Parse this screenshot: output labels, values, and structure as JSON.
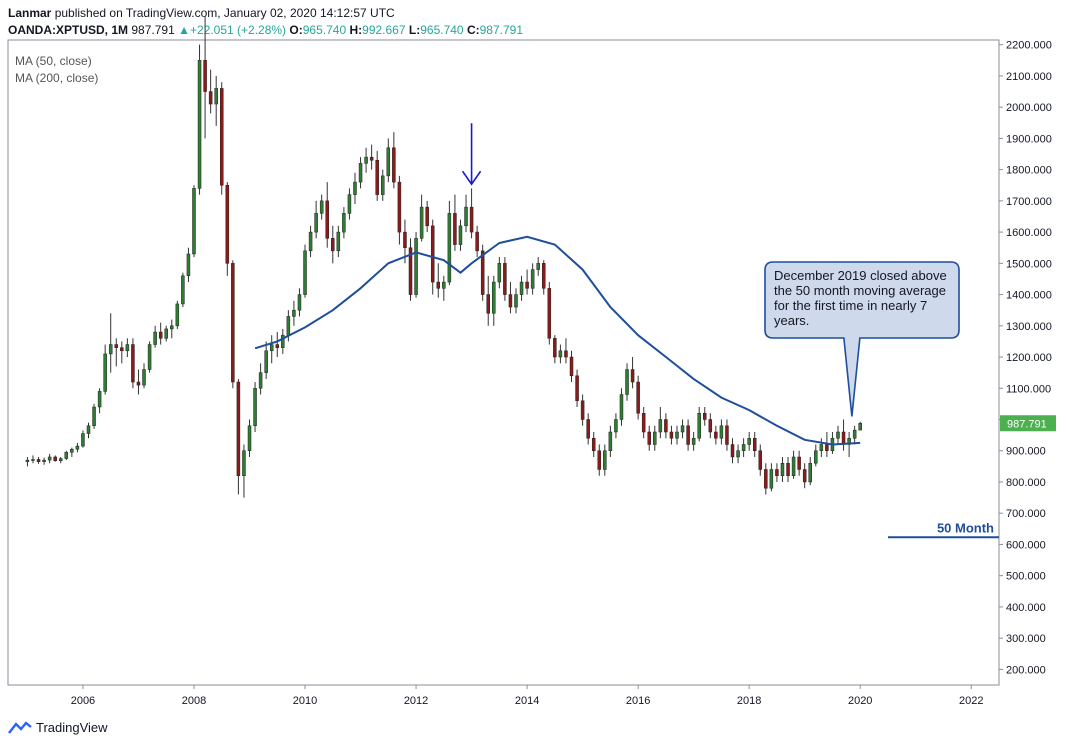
{
  "header": {
    "publisher": "Lanmar",
    "published_text": "published on TradingView.com, January 02, 2020 14:12:57 UTC",
    "symbol": "OANDA:XPTUSD, 1M",
    "last": "987.791",
    "change": "+22.051 (+2.28%)",
    "o_label": "O:",
    "o": "965.740",
    "h_label": "H:",
    "h": "992.667",
    "l_label": "L:",
    "l": "965.740",
    "c_label": "C:",
    "c": "987.791"
  },
  "indicators": [
    "MA (50, close)",
    "MA (200, close)"
  ],
  "footer": {
    "brand": "TradingView"
  },
  "annotations": {
    "callout": "December 2019 closed above the 50 month moving average for the first time in nearly 7 years.",
    "hline_label": "50 Month",
    "price_label": "987.791"
  },
  "colors": {
    "up": "#26a69a",
    "up_body": "#2e7d32",
    "down_body": "#8b1a1a",
    "ma": "#1f4e9c",
    "price_tag": "#4caf50",
    "arrow": "#1a1acc"
  },
  "chart_data": {
    "type": "candlestick",
    "x_ticks": [
      "2006",
      "2008",
      "2010",
      "2012",
      "2014",
      "2016",
      "2018",
      "2020",
      "2022"
    ],
    "y_ticks": [
      "200.000",
      "300.000",
      "400.000",
      "500.000",
      "600.000",
      "700.000",
      "800.000",
      "900.000",
      "1000.000",
      "1100.000",
      "1200.000",
      "1300.000",
      "1400.000",
      "1500.000",
      "1600.000",
      "1700.000",
      "1800.000",
      "1900.000",
      "2000.000",
      "2100.000",
      "2200.000"
    ],
    "ylim": [
      150,
      2215
    ],
    "xlim": [
      2004.65,
      2022.5
    ],
    "hline": {
      "value": 623,
      "x_start": 2020.5
    },
    "arrow_at": {
      "x": 2013.0,
      "y": 1750
    },
    "candles": [
      [
        2005.0,
        865,
        880,
        850,
        870
      ],
      [
        2005.1,
        870,
        885,
        860,
        872
      ],
      [
        2005.2,
        872,
        880,
        858,
        865
      ],
      [
        2005.3,
        865,
        878,
        855,
        870
      ],
      [
        2005.4,
        870,
        890,
        860,
        880
      ],
      [
        2005.5,
        880,
        885,
        865,
        868
      ],
      [
        2005.6,
        868,
        880,
        860,
        875
      ],
      [
        2005.7,
        875,
        900,
        870,
        895
      ],
      [
        2005.8,
        895,
        910,
        880,
        905
      ],
      [
        2005.9,
        905,
        925,
        895,
        915
      ],
      [
        2006.0,
        915,
        965,
        910,
        955
      ],
      [
        2006.1,
        955,
        990,
        940,
        980
      ],
      [
        2006.2,
        980,
        1050,
        970,
        1040
      ],
      [
        2006.3,
        1040,
        1100,
        1020,
        1090
      ],
      [
        2006.4,
        1090,
        1240,
        1080,
        1210
      ],
      [
        2006.5,
        1210,
        1340,
        1150,
        1240
      ],
      [
        2006.6,
        1240,
        1260,
        1170,
        1230
      ],
      [
        2006.7,
        1230,
        1250,
        1180,
        1220
      ],
      [
        2006.8,
        1220,
        1260,
        1200,
        1240
      ],
      [
        2006.9,
        1240,
        1260,
        1100,
        1120
      ],
      [
        2007.0,
        1120,
        1160,
        1080,
        1110
      ],
      [
        2007.1,
        1110,
        1180,
        1100,
        1160
      ],
      [
        2007.2,
        1160,
        1250,
        1150,
        1240
      ],
      [
        2007.3,
        1240,
        1300,
        1230,
        1280
      ],
      [
        2007.4,
        1280,
        1310,
        1240,
        1260
      ],
      [
        2007.5,
        1260,
        1300,
        1250,
        1290
      ],
      [
        2007.6,
        1290,
        1320,
        1260,
        1300
      ],
      [
        2007.7,
        1300,
        1380,
        1290,
        1370
      ],
      [
        2007.8,
        1370,
        1470,
        1360,
        1460
      ],
      [
        2007.9,
        1460,
        1550,
        1440,
        1530
      ],
      [
        2008.0,
        1530,
        1750,
        1520,
        1740
      ],
      [
        2008.1,
        1740,
        2200,
        1720,
        2150
      ],
      [
        2008.2,
        2150,
        2290,
        1900,
        2050
      ],
      [
        2008.3,
        2050,
        2120,
        1980,
        2010
      ],
      [
        2008.4,
        2010,
        2100,
        1940,
        2060
      ],
      [
        2008.5,
        2060,
        2080,
        1720,
        1750
      ],
      [
        2008.6,
        1750,
        1760,
        1460,
        1500
      ],
      [
        2008.7,
        1500,
        1510,
        1100,
        1120
      ],
      [
        2008.8,
        1120,
        1130,
        760,
        820
      ],
      [
        2008.9,
        820,
        920,
        750,
        900
      ],
      [
        2009.0,
        900,
        1000,
        880,
        980
      ],
      [
        2009.1,
        980,
        1120,
        960,
        1100
      ],
      [
        2009.2,
        1100,
        1180,
        1080,
        1150
      ],
      [
        2009.3,
        1150,
        1250,
        1130,
        1220
      ],
      [
        2009.4,
        1220,
        1270,
        1180,
        1240
      ],
      [
        2009.5,
        1240,
        1280,
        1200,
        1230
      ],
      [
        2009.6,
        1230,
        1290,
        1210,
        1270
      ],
      [
        2009.7,
        1270,
        1350,
        1250,
        1330
      ],
      [
        2009.8,
        1330,
        1380,
        1300,
        1350
      ],
      [
        2009.9,
        1350,
        1420,
        1330,
        1400
      ],
      [
        2010.0,
        1400,
        1560,
        1390,
        1540
      ],
      [
        2010.1,
        1540,
        1620,
        1520,
        1600
      ],
      [
        2010.2,
        1600,
        1700,
        1580,
        1660
      ],
      [
        2010.3,
        1660,
        1720,
        1640,
        1700
      ],
      [
        2010.4,
        1700,
        1760,
        1550,
        1580
      ],
      [
        2010.5,
        1580,
        1620,
        1500,
        1540
      ],
      [
        2010.6,
        1540,
        1620,
        1520,
        1600
      ],
      [
        2010.7,
        1600,
        1680,
        1580,
        1660
      ],
      [
        2010.8,
        1660,
        1740,
        1640,
        1720
      ],
      [
        2010.9,
        1720,
        1790,
        1690,
        1760
      ],
      [
        2011.0,
        1760,
        1840,
        1740,
        1820
      ],
      [
        2011.1,
        1820,
        1870,
        1790,
        1840
      ],
      [
        2011.2,
        1840,
        1880,
        1800,
        1830
      ],
      [
        2011.3,
        1830,
        1860,
        1700,
        1720
      ],
      [
        2011.4,
        1720,
        1800,
        1700,
        1780
      ],
      [
        2011.5,
        1780,
        1900,
        1760,
        1870
      ],
      [
        2011.6,
        1870,
        1920,
        1740,
        1760
      ],
      [
        2011.7,
        1760,
        1780,
        1560,
        1600
      ],
      [
        2011.8,
        1600,
        1640,
        1500,
        1550
      ],
      [
        2011.9,
        1550,
        1580,
        1380,
        1400
      ],
      [
        2012.0,
        1400,
        1600,
        1390,
        1580
      ],
      [
        2012.1,
        1580,
        1720,
        1570,
        1680
      ],
      [
        2012.2,
        1680,
        1700,
        1600,
        1620
      ],
      [
        2012.3,
        1620,
        1640,
        1400,
        1440
      ],
      [
        2012.4,
        1440,
        1500,
        1390,
        1420
      ],
      [
        2012.5,
        1420,
        1460,
        1380,
        1440
      ],
      [
        2012.6,
        1440,
        1700,
        1430,
        1660
      ],
      [
        2012.7,
        1660,
        1720,
        1540,
        1560
      ],
      [
        2012.8,
        1560,
        1640,
        1540,
        1620
      ],
      [
        2012.9,
        1620,
        1720,
        1600,
        1680
      ],
      [
        2013.0,
        1680,
        1740,
        1580,
        1600
      ],
      [
        2013.1,
        1600,
        1620,
        1520,
        1540
      ],
      [
        2013.2,
        1540,
        1560,
        1380,
        1400
      ],
      [
        2013.3,
        1400,
        1460,
        1300,
        1340
      ],
      [
        2013.4,
        1340,
        1460,
        1300,
        1440
      ],
      [
        2013.5,
        1440,
        1520,
        1420,
        1500
      ],
      [
        2013.6,
        1500,
        1520,
        1380,
        1400
      ],
      [
        2013.7,
        1400,
        1440,
        1340,
        1360
      ],
      [
        2013.8,
        1360,
        1420,
        1340,
        1400
      ],
      [
        2013.9,
        1400,
        1460,
        1380,
        1440
      ],
      [
        2014.0,
        1440,
        1480,
        1400,
        1420
      ],
      [
        2014.1,
        1420,
        1500,
        1400,
        1480
      ],
      [
        2014.2,
        1480,
        1520,
        1460,
        1500
      ],
      [
        2014.3,
        1500,
        1510,
        1400,
        1420
      ],
      [
        2014.4,
        1420,
        1440,
        1240,
        1260
      ],
      [
        2014.5,
        1260,
        1270,
        1180,
        1200
      ],
      [
        2014.6,
        1200,
        1240,
        1180,
        1220
      ],
      [
        2014.7,
        1220,
        1260,
        1180,
        1200
      ],
      [
        2014.8,
        1200,
        1220,
        1120,
        1140
      ],
      [
        2014.9,
        1140,
        1160,
        1040,
        1060
      ],
      [
        2015.0,
        1060,
        1080,
        980,
        1000
      ],
      [
        2015.1,
        1000,
        1020,
        920,
        940
      ],
      [
        2015.2,
        940,
        960,
        880,
        900
      ],
      [
        2015.3,
        900,
        920,
        820,
        840
      ],
      [
        2015.4,
        840,
        920,
        820,
        900
      ],
      [
        2015.5,
        900,
        980,
        880,
        960
      ],
      [
        2015.6,
        960,
        1020,
        940,
        1000
      ],
      [
        2015.7,
        1000,
        1100,
        980,
        1080
      ],
      [
        2015.8,
        1080,
        1180,
        1060,
        1160
      ],
      [
        2015.9,
        1160,
        1200,
        1100,
        1120
      ],
      [
        2016.0,
        1120,
        1140,
        1000,
        1020
      ],
      [
        2016.1,
        1020,
        1040,
        940,
        960
      ],
      [
        2016.2,
        960,
        980,
        900,
        920
      ],
      [
        2016.3,
        920,
        980,
        900,
        960
      ],
      [
        2016.4,
        960,
        1040,
        940,
        1000
      ],
      [
        2016.5,
        1000,
        1020,
        940,
        960
      ],
      [
        2016.6,
        960,
        980,
        920,
        940
      ],
      [
        2016.7,
        940,
        980,
        920,
        960
      ],
      [
        2016.8,
        960,
        1000,
        940,
        980
      ],
      [
        2016.9,
        980,
        1000,
        900,
        920
      ],
      [
        2017.0,
        920,
        960,
        900,
        940
      ],
      [
        2017.1,
        940,
        1040,
        930,
        1020
      ],
      [
        2017.2,
        1020,
        1040,
        980,
        1000
      ],
      [
        2017.3,
        1000,
        1020,
        940,
        960
      ],
      [
        2017.4,
        960,
        980,
        920,
        940
      ],
      [
        2017.5,
        940,
        1000,
        920,
        980
      ],
      [
        2017.6,
        980,
        1000,
        900,
        920
      ],
      [
        2017.7,
        920,
        940,
        860,
        880
      ],
      [
        2017.8,
        880,
        920,
        860,
        900
      ],
      [
        2017.9,
        900,
        940,
        880,
        920
      ],
      [
        2018.0,
        920,
        960,
        900,
        940
      ],
      [
        2018.1,
        940,
        960,
        880,
        900
      ],
      [
        2018.2,
        900,
        920,
        820,
        840
      ],
      [
        2018.3,
        840,
        860,
        760,
        780
      ],
      [
        2018.4,
        780,
        860,
        770,
        840
      ],
      [
        2018.5,
        840,
        860,
        800,
        820
      ],
      [
        2018.6,
        820,
        880,
        800,
        860
      ],
      [
        2018.7,
        860,
        880,
        800,
        820
      ],
      [
        2018.8,
        820,
        900,
        810,
        880
      ],
      [
        2018.9,
        880,
        900,
        820,
        840
      ],
      [
        2019.0,
        840,
        860,
        780,
        800
      ],
      [
        2019.1,
        800,
        880,
        790,
        860
      ],
      [
        2019.2,
        860,
        920,
        850,
        900
      ],
      [
        2019.3,
        900,
        940,
        880,
        920
      ],
      [
        2019.4,
        920,
        960,
        880,
        900
      ],
      [
        2019.5,
        900,
        960,
        890,
        940
      ],
      [
        2019.6,
        940,
        980,
        920,
        960
      ],
      [
        2019.7,
        960,
        1000,
        900,
        920
      ],
      [
        2019.8,
        920,
        960,
        880,
        940
      ],
      [
        2019.9,
        940,
        980,
        920,
        966
      ],
      [
        2020.0,
        966,
        993,
        966,
        988
      ]
    ],
    "ma50": [
      [
        2009.1,
        1228
      ],
      [
        2009.5,
        1250
      ],
      [
        2010.0,
        1295
      ],
      [
        2010.5,
        1350
      ],
      [
        2011.0,
        1420
      ],
      [
        2011.5,
        1500
      ],
      [
        2012.0,
        1535
      ],
      [
        2012.5,
        1510
      ],
      [
        2012.8,
        1470
      ],
      [
        2013.0,
        1500
      ],
      [
        2013.5,
        1565
      ],
      [
        2014.0,
        1585
      ],
      [
        2014.5,
        1560
      ],
      [
        2015.0,
        1480
      ],
      [
        2015.5,
        1360
      ],
      [
        2016.0,
        1270
      ],
      [
        2016.5,
        1200
      ],
      [
        2017.0,
        1130
      ],
      [
        2017.5,
        1070
      ],
      [
        2018.0,
        1030
      ],
      [
        2018.5,
        980
      ],
      [
        2019.0,
        935
      ],
      [
        2019.5,
        920
      ],
      [
        2020.0,
        925
      ]
    ]
  }
}
